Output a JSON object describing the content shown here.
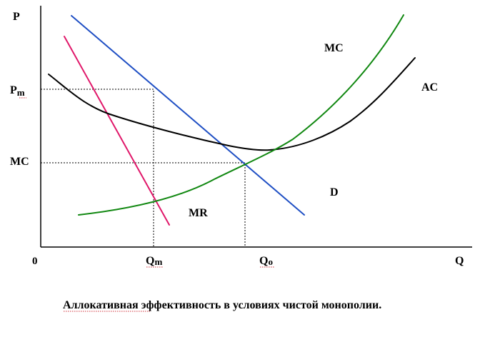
{
  "figure": {
    "caption": "Аллокативная эффективность в условиях чистой монополии."
  },
  "axes": {
    "y_label": "P",
    "x_label": "Q",
    "origin_label": "0",
    "y_marks": [
      {
        "main": "P",
        "sub": "m"
      },
      {
        "main": "MC",
        "sub": ""
      }
    ],
    "x_marks": [
      {
        "main": "Q",
        "sub": "m"
      },
      {
        "main": "Q",
        "sub": "o"
      }
    ]
  },
  "curves": {
    "mc": {
      "label": "MC",
      "color": "#118811"
    },
    "ac": {
      "label": "AC",
      "color": "#000000"
    },
    "demand": {
      "label": "D",
      "color": "#1f4fc4"
    },
    "mr": {
      "label": "MR",
      "color": "#e0186a"
    }
  }
}
